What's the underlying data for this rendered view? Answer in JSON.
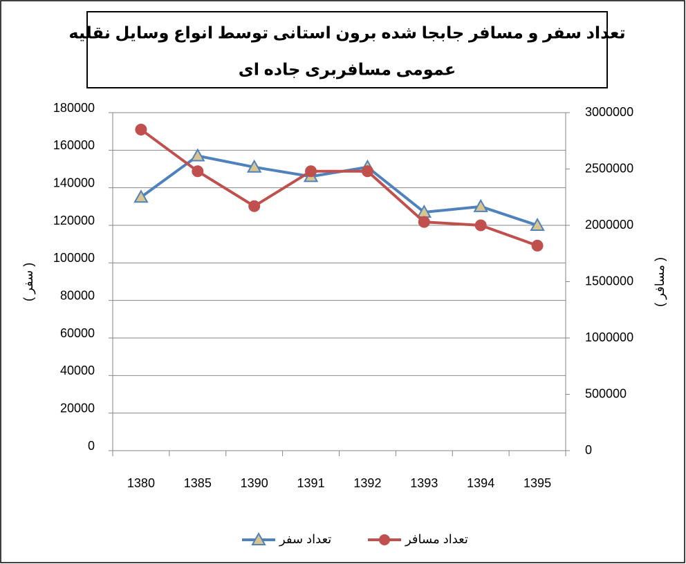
{
  "chart_data": {
    "type": "line",
    "title": [
      "تعداد سفر و مسافر جابجا شده برون استانی توسط انواع وسایل نقلیه",
      "عمومی مسافربری جاده ای"
    ],
    "ylabel": "( سفر )",
    "y2label": "( مسافر )",
    "categories": [
      "1380",
      "1385",
      "1390",
      "1391",
      "1392",
      "1393",
      "1394",
      "1395"
    ],
    "series": [
      {
        "name": "تعداد سفر",
        "color": "#4f81bd",
        "marker": "triangle",
        "axis": "y",
        "values": [
          135000,
          157000,
          151000,
          146000,
          151000,
          127000,
          130000,
          120000
        ]
      },
      {
        "name": "تعداد مسافر",
        "color": "#c0504d",
        "marker": "circle",
        "axis": "y2",
        "values": [
          2850000,
          2480000,
          2170000,
          2480000,
          2480000,
          2030000,
          2000000,
          1820000
        ]
      }
    ],
    "ylim": [
      0,
      180000
    ],
    "yticks": [
      0,
      20000,
      40000,
      60000,
      80000,
      100000,
      120000,
      140000,
      160000,
      180000
    ],
    "y2lim": [
      0,
      3000000
    ],
    "y2ticks": [
      0,
      500000,
      1000000,
      1500000,
      2000000,
      2500000,
      3000000
    ],
    "grid": true,
    "legend": "bottom"
  }
}
